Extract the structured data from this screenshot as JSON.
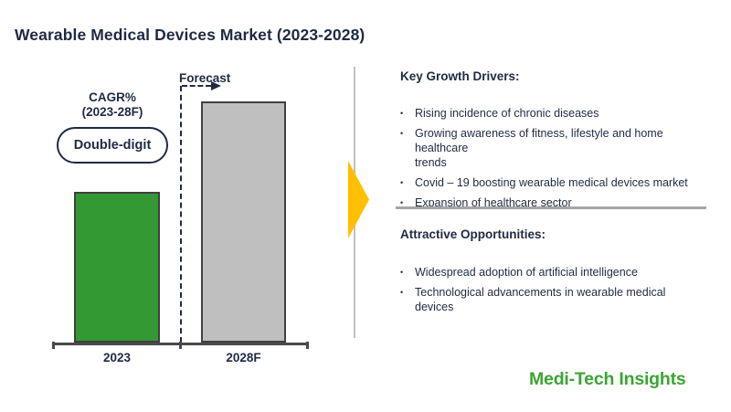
{
  "title": "Wearable Medical Devices Market (2023-2028)",
  "colors": {
    "navy_text": "#1F2A44",
    "bar_2023_green": "#339933",
    "bar_2028_gray": "#BFBFBF",
    "bar_border": "#404040",
    "axis_gray": "#4A4A4A",
    "arrow_yellow": "#FFC000",
    "divider_gray": "#C0C0C0",
    "panel_rule_gray": "#A6A6A6",
    "logo_green": "#3CA532"
  },
  "chart": {
    "cagr_title_line1": "CAGR%",
    "cagr_title_line2": "(2023-28F)",
    "cagr_badge": "Double-digit",
    "forecast_label": "Forecast",
    "x_labels": [
      "2023",
      "2028F"
    ]
  },
  "chart_data": {
    "type": "bar",
    "title": "Wearable Medical Devices Market (2023-2028)",
    "categories": [
      "2023",
      "2028F"
    ],
    "values": [
      62.5,
      100
    ],
    "values_note": "no numeric axis shown; bar heights are relative, indexed to 2028F = 100",
    "bar_colors": [
      "#339933",
      "#BFBFBF"
    ],
    "annotations": [
      "CAGR% (2023-28F): Double-digit",
      "Forecast (applies to 2028F bar)"
    ],
    "xlabel": "",
    "ylabel": "",
    "grid": false,
    "legend": false
  },
  "right_panel": {
    "bullet_char": "•",
    "sections": [
      {
        "heading": "Key Growth Drivers:",
        "bullets": [
          [
            "Rising incidence of chronic diseases"
          ],
          [
            "Growing awareness of fitness, lifestyle and home healthcare",
            "trends"
          ],
          [
            "Covid – 19 boosting wearable medical devices market"
          ],
          [
            "Expansion of healthcare sector"
          ]
        ]
      },
      {
        "heading": "Attractive Opportunities:",
        "bullets": [
          [
            "Widespread adoption of artificial intelligence"
          ],
          [
            "Technological advancements in wearable medical",
            "devices"
          ]
        ]
      }
    ]
  },
  "logo_text": "Medi-Tech Insights"
}
